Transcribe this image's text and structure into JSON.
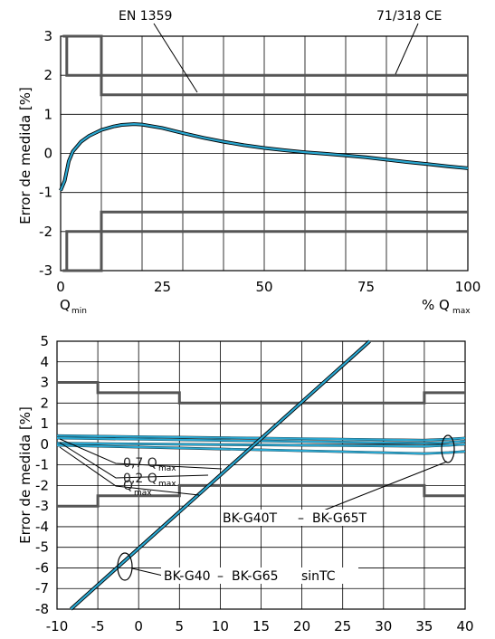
{
  "chart_data": [
    {
      "type": "line",
      "ylabel": "Error de medida [%]",
      "xlabel_prefix": "% Q",
      "xlabel_sub": "max",
      "qmin_label": "Q",
      "qmin_sub": "min",
      "xlim": [
        0,
        100
      ],
      "ylim": [
        -3,
        3
      ],
      "x_ticks": [
        0,
        25,
        50,
        75,
        100
      ],
      "y_ticks": [
        3,
        2,
        1,
        0,
        -1,
        -2,
        -3
      ],
      "x_grid": [
        10,
        20,
        30,
        40,
        50,
        60,
        70,
        80,
        90,
        100
      ],
      "grid": true,
      "annotations": [
        "EN 1359",
        "71/318 CE"
      ],
      "limits_en1359": [
        {
          "x": [
            0.5,
            0.5,
            10,
            10,
            100
          ],
          "y": [
            3,
            3,
            3,
            1.5,
            1.5
          ]
        },
        {
          "x": [
            0.5,
            0.5,
            10,
            10,
            100
          ],
          "y": [
            -3,
            -3,
            -3,
            -1.5,
            -1.5
          ]
        }
      ],
      "limits_71318": [
        {
          "x": [
            1.5,
            1.5,
            100
          ],
          "y": [
            3,
            2,
            2
          ]
        },
        {
          "x": [
            1.5,
            1.5,
            100
          ],
          "y": [
            -3,
            -2,
            -2
          ]
        }
      ],
      "series": [
        {
          "x": [
            0,
            1,
            2,
            3,
            5,
            7,
            10,
            13,
            15,
            18,
            20,
            25,
            30,
            35,
            40,
            45,
            50,
            55,
            60,
            65,
            70,
            75,
            80,
            85,
            90,
            95,
            100
          ],
          "y": [
            -0.95,
            -0.7,
            -0.2,
            0.05,
            0.3,
            0.45,
            0.6,
            0.69,
            0.73,
            0.75,
            0.74,
            0.65,
            0.52,
            0.4,
            0.3,
            0.21,
            0.14,
            0.08,
            0.03,
            -0.01,
            -0.05,
            -0.1,
            -0.16,
            -0.22,
            -0.27,
            -0.33,
            -0.38
          ]
        }
      ]
    },
    {
      "type": "line",
      "ylabel": "Error de medida [%]",
      "xlim": [
        -10,
        40
      ],
      "ylim": [
        -8,
        5
      ],
      "x_ticks": [
        -10,
        -5,
        0,
        5,
        10,
        15,
        20,
        25,
        30,
        35,
        40
      ],
      "y_ticks": [
        5,
        4,
        3,
        2,
        1,
        0,
        -1,
        -2,
        -3,
        -4,
        -5,
        -6,
        -7,
        -8
      ],
      "grid": true,
      "q07_label": "0,7 Q",
      "q02_label": "0,2 Q",
      "q_label": "Q",
      "max_sub": "max",
      "label_temp": "BK-G40T",
      "label_temp2": "BK-G65T",
      "label_notc": "BK-G40",
      "label_notc2": "BK-G65",
      "label_sintc": "sinTC",
      "dash": "–",
      "limits": [
        {
          "x": [
            -10,
            -5,
            -5,
            5,
            5,
            35,
            35,
            40
          ],
          "y": [
            3,
            3,
            2.5,
            2.5,
            2,
            2,
            2.5,
            2.5
          ]
        },
        {
          "x": [
            -10,
            -5,
            -5,
            5,
            5,
            35,
            35,
            40
          ],
          "y": [
            -3,
            -3,
            -2.5,
            -2.5,
            -2,
            -2,
            -2.5,
            -2.5
          ]
        }
      ],
      "series": [
        {
          "x": [
            -8.3,
            28.3
          ],
          "y": [
            -8,
            5
          ]
        },
        {
          "x": [
            -10,
            35,
            38,
            40
          ],
          "y": [
            0.42,
            0.2,
            0.25,
            0.3
          ]
        },
        {
          "x": [
            -10,
            35,
            38,
            40
          ],
          "y": [
            0.3,
            0.05,
            0.1,
            0.15
          ]
        },
        {
          "x": [
            -10,
            35,
            38,
            40
          ],
          "y": [
            0.05,
            -0.1,
            -0.05,
            0.0
          ]
        },
        {
          "x": [
            -10,
            35,
            38,
            40
          ],
          "y": [
            -0.05,
            -0.45,
            -0.4,
            -0.35
          ]
        }
      ]
    }
  ]
}
